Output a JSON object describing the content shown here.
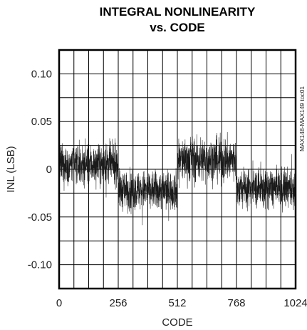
{
  "chart_data": {
    "type": "line",
    "title_line1": "INTEGRAL NONLINEARITY",
    "title_line2": "vs. CODE",
    "xlabel": "CODE",
    "ylabel": "INL (LSB)",
    "side_note": "MAX148-MAX149 toc01",
    "xlim": [
      0,
      1024
    ],
    "ylim": [
      -0.125,
      0.125
    ],
    "x_ticks": [
      0,
      256,
      512,
      768,
      1024
    ],
    "x_tick_labels": [
      "0",
      "256",
      "512",
      "768",
      "1024"
    ],
    "y_ticks": [
      0.1,
      0.05,
      0,
      -0.05,
      -0.1
    ],
    "y_tick_labels": [
      "0.10",
      "0.05",
      "0",
      "-0.05",
      "-0.10"
    ],
    "grid": true,
    "series": [
      {
        "segments": [
          {
            "x_start": 0,
            "x_end": 256,
            "mean": 0.005,
            "spread": 0.035
          },
          {
            "x_start": 256,
            "x_end": 512,
            "mean": -0.022,
            "spread": 0.035
          },
          {
            "x_start": 512,
            "x_end": 768,
            "mean": 0.01,
            "spread": 0.04
          },
          {
            "x_start": 768,
            "x_end": 1024,
            "mean": -0.02,
            "spread": 0.035
          }
        ]
      }
    ]
  }
}
